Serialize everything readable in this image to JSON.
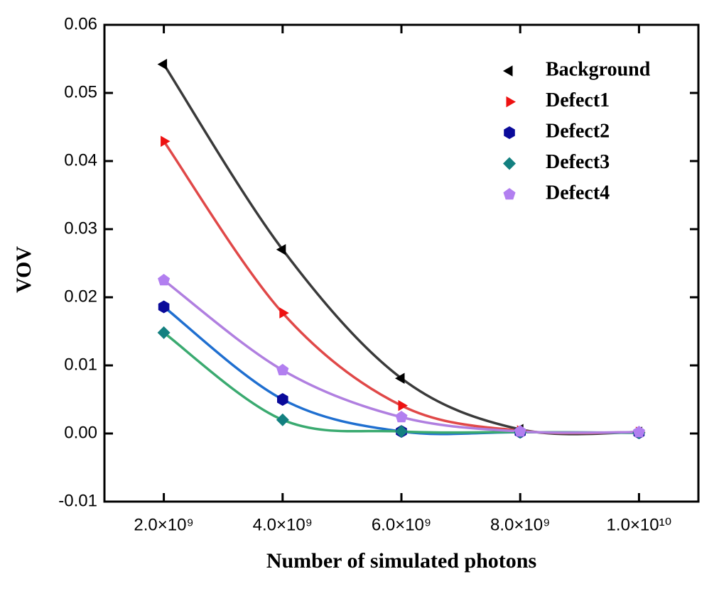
{
  "chart_data": {
    "type": "scatter",
    "x_label": "Number of simulated photons",
    "y_label": "VOV",
    "x": [
      2000000000,
      4000000000,
      6000000000,
      8000000000,
      10000000000
    ],
    "xlim": [
      1000000000,
      11000000000
    ],
    "xticks": [
      {
        "value": 2000000000,
        "label": "2.0×10⁹"
      },
      {
        "value": 4000000000,
        "label": "4.0×10⁹"
      },
      {
        "value": 6000000000,
        "label": "6.0×10⁹"
      },
      {
        "value": 8000000000,
        "label": "8.0×10⁹"
      },
      {
        "value": 10000000000,
        "label": "1.0×10¹⁰"
      }
    ],
    "ylim": [
      -0.01,
      0.06
    ],
    "yticks": [
      -0.01,
      {
        "value": 0,
        "label": "0.00"
      },
      0.01,
      0.02,
      0.03,
      0.04,
      0.05,
      0.06
    ],
    "legend": "upper-right",
    "series": [
      {
        "name": "Background",
        "color": "#000000",
        "line_color": "#3a3a3a",
        "marker": "triangle-left",
        "values": [
          0.0542,
          0.027,
          0.0081,
          0.0006,
          0.0002
        ]
      },
      {
        "name": "Defect1",
        "color": "#ee1111",
        "line_color": "#e04848",
        "marker": "triangle-right",
        "values": [
          0.0429,
          0.0177,
          0.0041,
          0.0004,
          0.0002
        ]
      },
      {
        "name": "Defect2",
        "color": "#0a0a9a",
        "line_color": "#1f6fd0",
        "marker": "hexagon",
        "values": [
          0.0186,
          0.005,
          0.0003,
          0.0002,
          0.0001
        ]
      },
      {
        "name": "Defect3",
        "color": "#138080",
        "line_color": "#3aaa70",
        "marker": "diamond",
        "values": [
          0.0148,
          0.002,
          0.0003,
          0.0002,
          0.0001
        ]
      },
      {
        "name": "Defect4",
        "color": "#b27ff0",
        "line_color": "#b07fe0",
        "marker": "pentagon",
        "values": [
          0.0225,
          0.0093,
          0.0024,
          0.0003,
          0.0002
        ]
      }
    ]
  }
}
